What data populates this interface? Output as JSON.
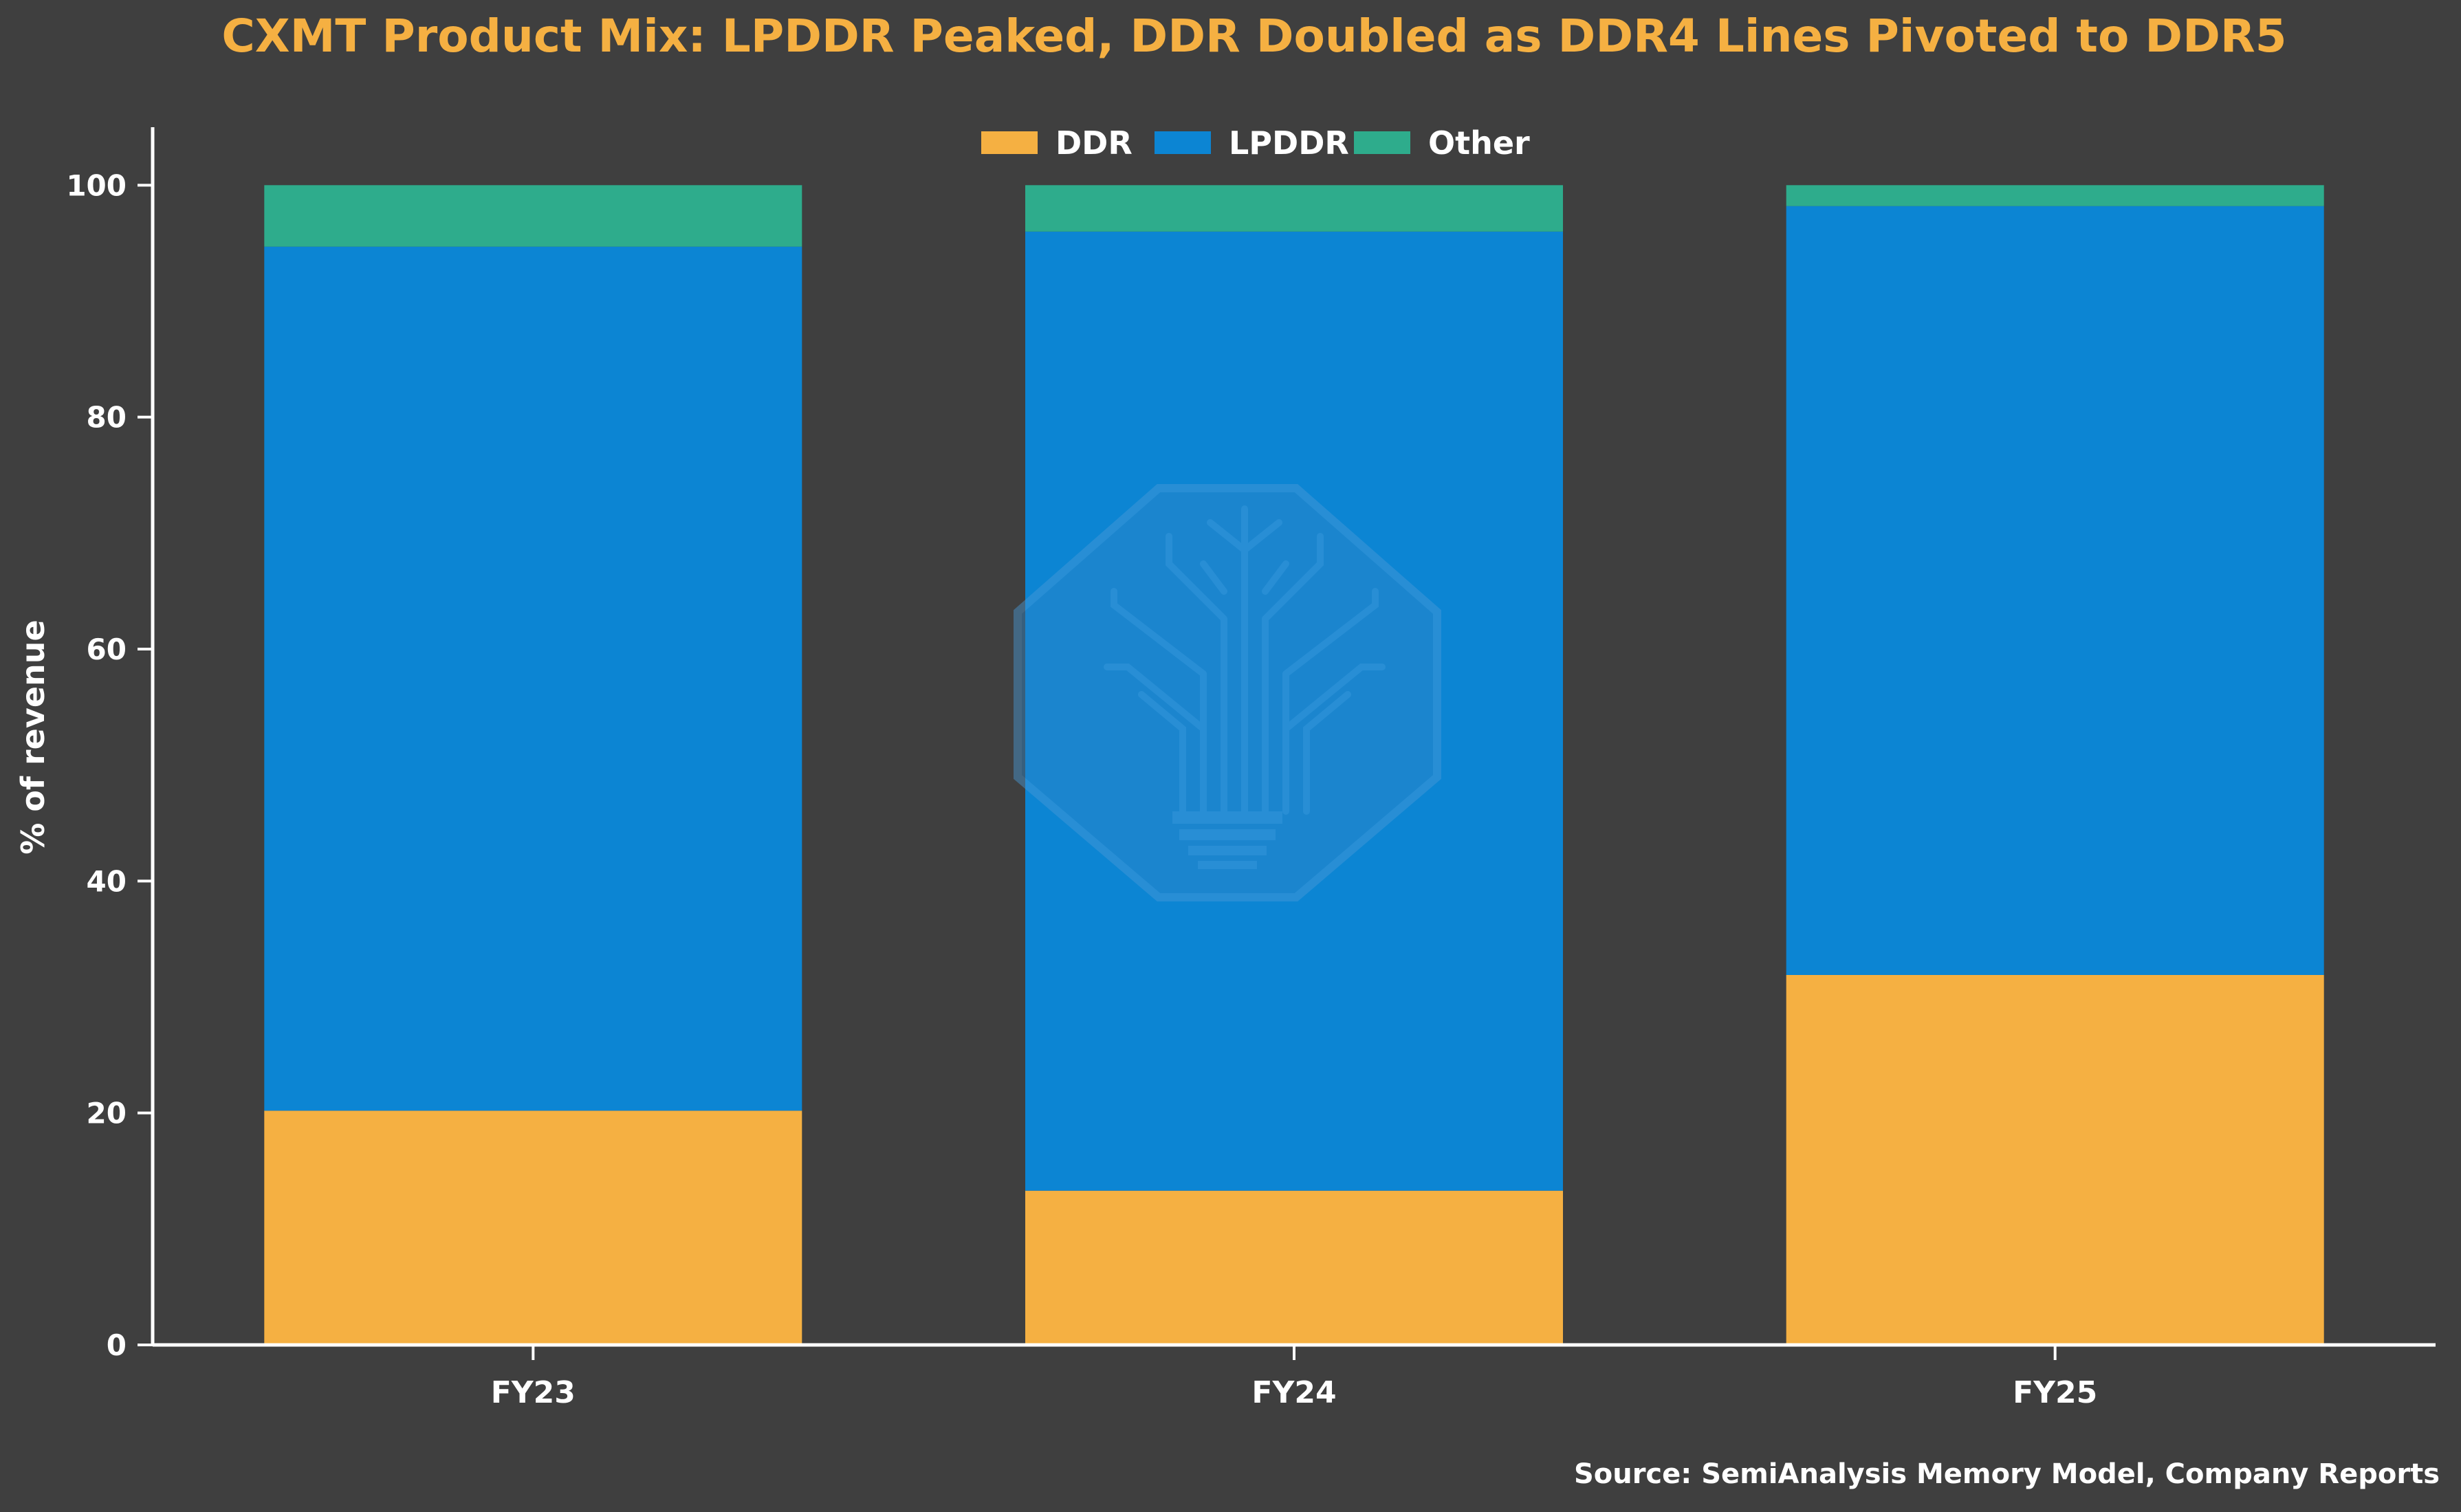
{
  "chart_data": {
    "type": "bar",
    "stacked": true,
    "title": "CXMT Product Mix: LPDDR Peaked, DDR Doubled as DDR4 Lines Pivoted to DDR5",
    "xlabel": "",
    "ylabel": "% of revenue",
    "ylim": [
      0,
      105
    ],
    "yticks": [
      0,
      20,
      40,
      60,
      80,
      100
    ],
    "categories": [
      "FY23",
      "FY24",
      "FY25"
    ],
    "series": [
      {
        "name": "DDR",
        "color": "#f5b042",
        "values": [
          20.2,
          13.3,
          31.9
        ]
      },
      {
        "name": "LPDDR",
        "color": "#0c85d3",
        "values": [
          74.5,
          82.7,
          66.3
        ]
      },
      {
        "name": "Other",
        "color": "#2eac8c",
        "values": [
          5.3,
          4.0,
          1.8
        ]
      }
    ],
    "legend_position": "top-center",
    "grid": false,
    "source_note": "Source: SemiAnalysis Memory Model, Company Reports"
  },
  "colors": {
    "background": "#3f3f3f",
    "title": "#f5b042",
    "text": "#ffffff",
    "axis": "#ffffff",
    "watermark": "#3b8fd6"
  },
  "watermark": {
    "icon": "circuit-tree-lightbulb-logo-icon"
  }
}
